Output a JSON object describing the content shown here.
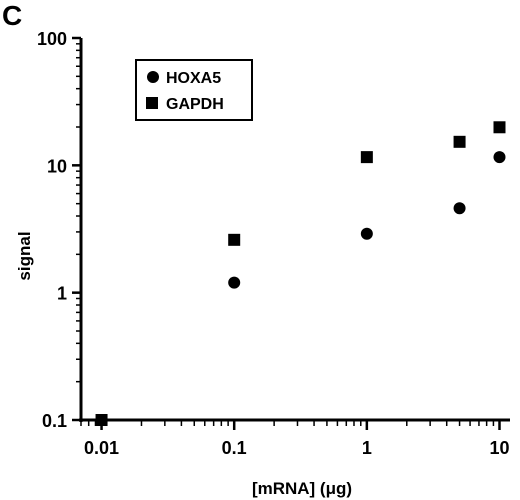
{
  "panel_label": "C",
  "chart_data": {
    "type": "scatter",
    "xscale": "log",
    "yscale": "log",
    "xlim": [
      0.007,
      12
    ],
    "ylim": [
      0.1,
      100
    ],
    "xlabel": "[mRNA] (μg)",
    "ylabel": "signal",
    "xticks": [
      {
        "value": 0.01,
        "label": "0.01"
      },
      {
        "value": 0.1,
        "label": "0.1"
      },
      {
        "value": 1,
        "label": "1"
      },
      {
        "value": 10,
        "label": "10"
      }
    ],
    "yticks": [
      {
        "value": 0.1,
        "label": "0.1"
      },
      {
        "value": 1,
        "label": "1"
      },
      {
        "value": 10,
        "label": "10"
      },
      {
        "value": 100,
        "label": "100"
      }
    ],
    "grid": false,
    "legend": "top-left",
    "series": [
      {
        "name": "HOXA5",
        "marker": "circle",
        "x": [
          0.1,
          1,
          5,
          10
        ],
        "y": [
          1.2,
          2.9,
          4.6,
          11.6
        ]
      },
      {
        "name": "GAPDH",
        "marker": "square",
        "x": [
          0.01,
          0.1,
          1,
          5,
          10
        ],
        "y": [
          0.1,
          2.6,
          11.6,
          15.3,
          19.9
        ]
      }
    ]
  }
}
